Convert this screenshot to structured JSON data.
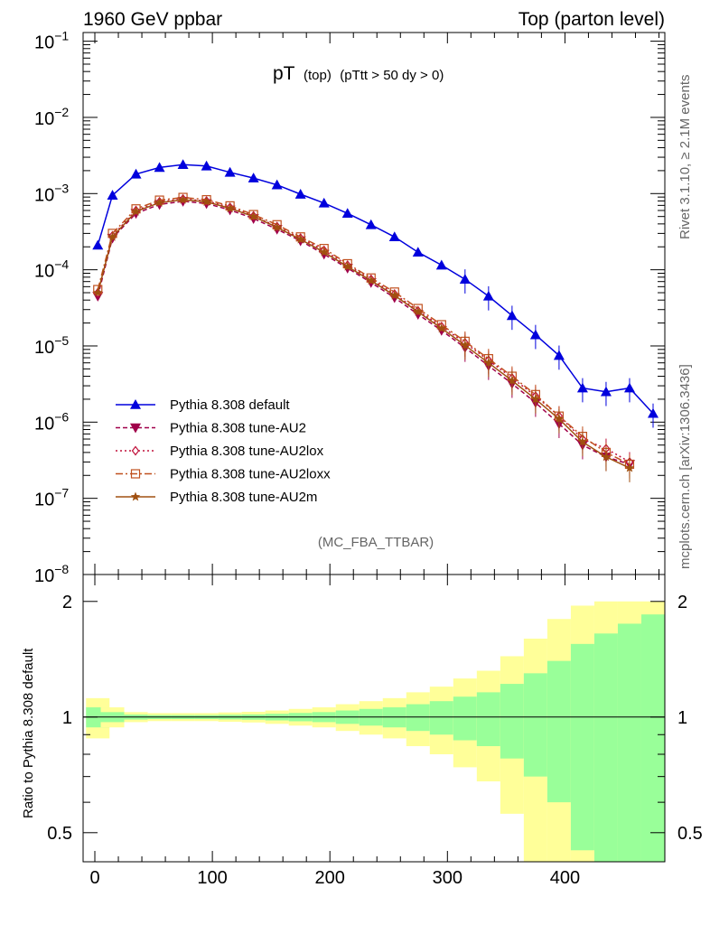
{
  "header": {
    "left": "1960 GeV ppbar",
    "right": "Top (parton level)"
  },
  "plot_title": {
    "main": "pT",
    "sub1": "(top)",
    "sub2": "(pTtt > 50 dy > 0)"
  },
  "analysis_label": "(MC_FBA_TTBAR)",
  "side_labels": {
    "rivet": "Rivet 3.1.10, ≥ 2.1M events",
    "mcplots": "mcplots.cern.ch [arXiv:1306.3436]"
  },
  "ratio_ylabel": "Ratio to Pythia 8.308 default",
  "colors": {
    "default": "#0000dd",
    "au2": "#a0004a",
    "au2lox": "#c0103a",
    "au2loxx": "#c0501e",
    "au2m": "#a05010",
    "band_inner": "#99ff99",
    "band_outer": "#ffff99"
  },
  "chart_data": [
    {
      "type": "line",
      "scale": "log",
      "xlim": [
        -10,
        485
      ],
      "ylim": [
        1e-08,
        0.13
      ],
      "yticks": [
        {
          "value": 0.1,
          "mant": "10",
          "exp": "−1"
        },
        {
          "value": 0.01,
          "mant": "10",
          "exp": "−2"
        },
        {
          "value": 0.001,
          "mant": "10",
          "exp": "−3"
        },
        {
          "value": 0.0001,
          "mant": "10",
          "exp": "−4"
        },
        {
          "value": 1e-05,
          "mant": "10",
          "exp": "−5"
        },
        {
          "value": 1e-06,
          "mant": "10",
          "exp": "−6"
        },
        {
          "value": 1e-07,
          "mant": "10",
          "exp": "−7"
        },
        {
          "value": 1e-08,
          "mant": "10",
          "exp": "−8"
        }
      ],
      "x": [
        2.5,
        15,
        35,
        55,
        75,
        95,
        115,
        135,
        155,
        175,
        195,
        215,
        235,
        255,
        275,
        295,
        315,
        335,
        355,
        375,
        395,
        415,
        435,
        455,
        475
      ],
      "series": [
        {
          "name": "Pythia 8.308 default",
          "key": "default",
          "marker": "triangle-up",
          "dash": "",
          "values": [
            0.00021,
            0.00095,
            0.0018,
            0.0022,
            0.0024,
            0.0023,
            0.0019,
            0.0016,
            0.0013,
            0.00098,
            0.00075,
            0.00055,
            0.00039,
            0.00027,
            0.00017,
            0.000115,
            7.5e-05,
            4.5e-05,
            2.5e-05,
            1.4e-05,
            7.5e-06,
            2.8e-06,
            2.5e-06,
            2.8e-06,
            1.3e-06
          ]
        },
        {
          "name": "Pythia 8.308 tune-AU2",
          "key": "au2",
          "marker": "triangle-down",
          "dash": "5,3",
          "values": [
            4.5e-05,
            0.00026,
            0.00055,
            0.00072,
            0.00079,
            0.00074,
            0.00061,
            0.00047,
            0.00034,
            0.00024,
            0.00016,
            0.000105,
            6.8e-05,
            4.3e-05,
            2.6e-05,
            1.6e-05,
            9.5e-06,
            5.5e-06,
            3.2e-06,
            1.8e-06,
            9.5e-07,
            5e-07,
            3.5e-07,
            2.8e-07,
            null
          ]
        },
        {
          "name": "Pythia 8.308 tune-AU2lox",
          "key": "au2lox",
          "marker": "diamond",
          "dash": "2,3",
          "values": [
            5e-05,
            0.00028,
            0.0006,
            0.00078,
            0.00085,
            0.0008,
            0.00066,
            0.00051,
            0.00037,
            0.00026,
            0.00018,
            0.000115,
            7.5e-05,
            4.8e-05,
            2.9e-05,
            1.8e-05,
            1.1e-05,
            6.5e-06,
            3.8e-06,
            2.2e-06,
            1.2e-06,
            6e-07,
            4.5e-07,
            3e-07,
            null
          ]
        },
        {
          "name": "Pythia 8.308 tune-AU2loxx",
          "key": "au2loxx",
          "marker": "square",
          "dash": "8,3,2,3",
          "values": [
            5.5e-05,
            0.0003,
            0.00063,
            0.00082,
            0.00089,
            0.00083,
            0.00069,
            0.00053,
            0.00039,
            0.00027,
            0.00019,
            0.00012,
            7.8e-05,
            5.1e-05,
            3.1e-05,
            1.9e-05,
            1.15e-05,
            6.8e-06,
            4e-06,
            2.3e-06,
            1.2e-06,
            6.5e-07,
            4e-07,
            2.8e-07,
            null
          ]
        },
        {
          "name": "Pythia 8.308 tune-AU2m",
          "key": "au2m",
          "marker": "star",
          "dash": "",
          "values": [
            5e-05,
            0.00027,
            0.00058,
            0.00076,
            0.00083,
            0.00078,
            0.00064,
            0.0005,
            0.00036,
            0.00025,
            0.00017,
            0.00011,
            7.2e-05,
            4.6e-05,
            2.8e-05,
            1.7e-05,
            1.02e-05,
            6e-06,
            3.5e-06,
            2e-06,
            1.1e-06,
            5.5e-07,
            3.5e-07,
            2.5e-07,
            null
          ]
        }
      ]
    },
    {
      "type": "area",
      "scale": "log",
      "xlim": [
        -10,
        485
      ],
      "ylim": [
        0.42,
        2.35
      ],
      "xlabel": "",
      "ylabel": "Ratio to Pythia 8.308 default",
      "xticks": [
        0,
        100,
        200,
        300,
        400
      ],
      "yticks": [
        {
          "value": 0.5,
          "label": "0.5"
        },
        {
          "value": 1,
          "label": "1"
        },
        {
          "value": 2,
          "label": "2"
        }
      ],
      "x": [
        2.5,
        15,
        35,
        55,
        75,
        95,
        115,
        135,
        155,
        175,
        195,
        215,
        235,
        255,
        275,
        295,
        315,
        335,
        355,
        375,
        395,
        415,
        435,
        455,
        475
      ],
      "inner_band": [
        0.06,
        0.03,
        0.015,
        0.012,
        0.012,
        0.012,
        0.014,
        0.016,
        0.02,
        0.025,
        0.03,
        0.04,
        0.05,
        0.06,
        0.08,
        0.1,
        0.13,
        0.16,
        0.22,
        0.3,
        0.4,
        0.55,
        0.65,
        0.75,
        0.85
      ],
      "outer_band": [
        0.12,
        0.06,
        0.03,
        0.024,
        0.024,
        0.024,
        0.028,
        0.032,
        0.04,
        0.05,
        0.06,
        0.08,
        0.1,
        0.12,
        0.16,
        0.2,
        0.26,
        0.32,
        0.44,
        0.6,
        0.8,
        0.95,
        1.0,
        1.0,
        1.0
      ]
    }
  ]
}
